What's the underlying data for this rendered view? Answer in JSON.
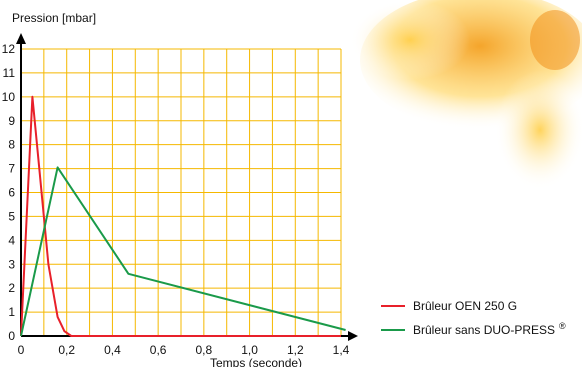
{
  "chart_data": {
    "type": "line",
    "ylabel": "Pression [mbar]",
    "xlabel": "Temps (seconde)",
    "xlim": [
      0,
      1.4
    ],
    "ylim": [
      0,
      12
    ],
    "x_ticks": [
      {
        "v": 0,
        "label": "0"
      },
      {
        "v": 0.2,
        "label": "0,2"
      },
      {
        "v": 0.4,
        "label": "0,4"
      },
      {
        "v": 0.6,
        "label": "0,6"
      },
      {
        "v": 0.8,
        "label": "0,8"
      },
      {
        "v": 1.0,
        "label": "1,0"
      },
      {
        "v": 1.2,
        "label": "1,2"
      },
      {
        "v": 1.4,
        "label": "1,4"
      }
    ],
    "y_ticks": [
      {
        "v": 0,
        "label": "0"
      },
      {
        "v": 1,
        "label": "1"
      },
      {
        "v": 2,
        "label": "2"
      },
      {
        "v": 3,
        "label": "3"
      },
      {
        "v": 4,
        "label": "4"
      },
      {
        "v": 5,
        "label": "5"
      },
      {
        "v": 6,
        "label": "6"
      },
      {
        "v": 7,
        "label": "7"
      },
      {
        "v": 8,
        "label": "8"
      },
      {
        "v": 9,
        "label": "9"
      },
      {
        "v": 10,
        "label": "10"
      },
      {
        "v": 11,
        "label": "11"
      },
      {
        "v": 12,
        "label": "12"
      }
    ],
    "grid": true,
    "grid_color": "#f5b800",
    "legend_position": "bottom-right",
    "series": [
      {
        "name": "Brûleur OEN 250 G",
        "color": "#e8202a",
        "points": [
          [
            0,
            0
          ],
          [
            0.05,
            10
          ],
          [
            0.08,
            7
          ],
          [
            0.12,
            3
          ],
          [
            0.16,
            0.8
          ],
          [
            0.19,
            0.2
          ],
          [
            0.22,
            0
          ],
          [
            1.4,
            0
          ]
        ]
      },
      {
        "name": "Brûleur sans DUO-PRESS",
        "superscript": "®",
        "color": "#1a9a4a",
        "points": [
          [
            0,
            0
          ],
          [
            0.16,
            7.05
          ],
          [
            0.47,
            2.6
          ],
          [
            1.42,
            0.25
          ]
        ]
      }
    ]
  }
}
